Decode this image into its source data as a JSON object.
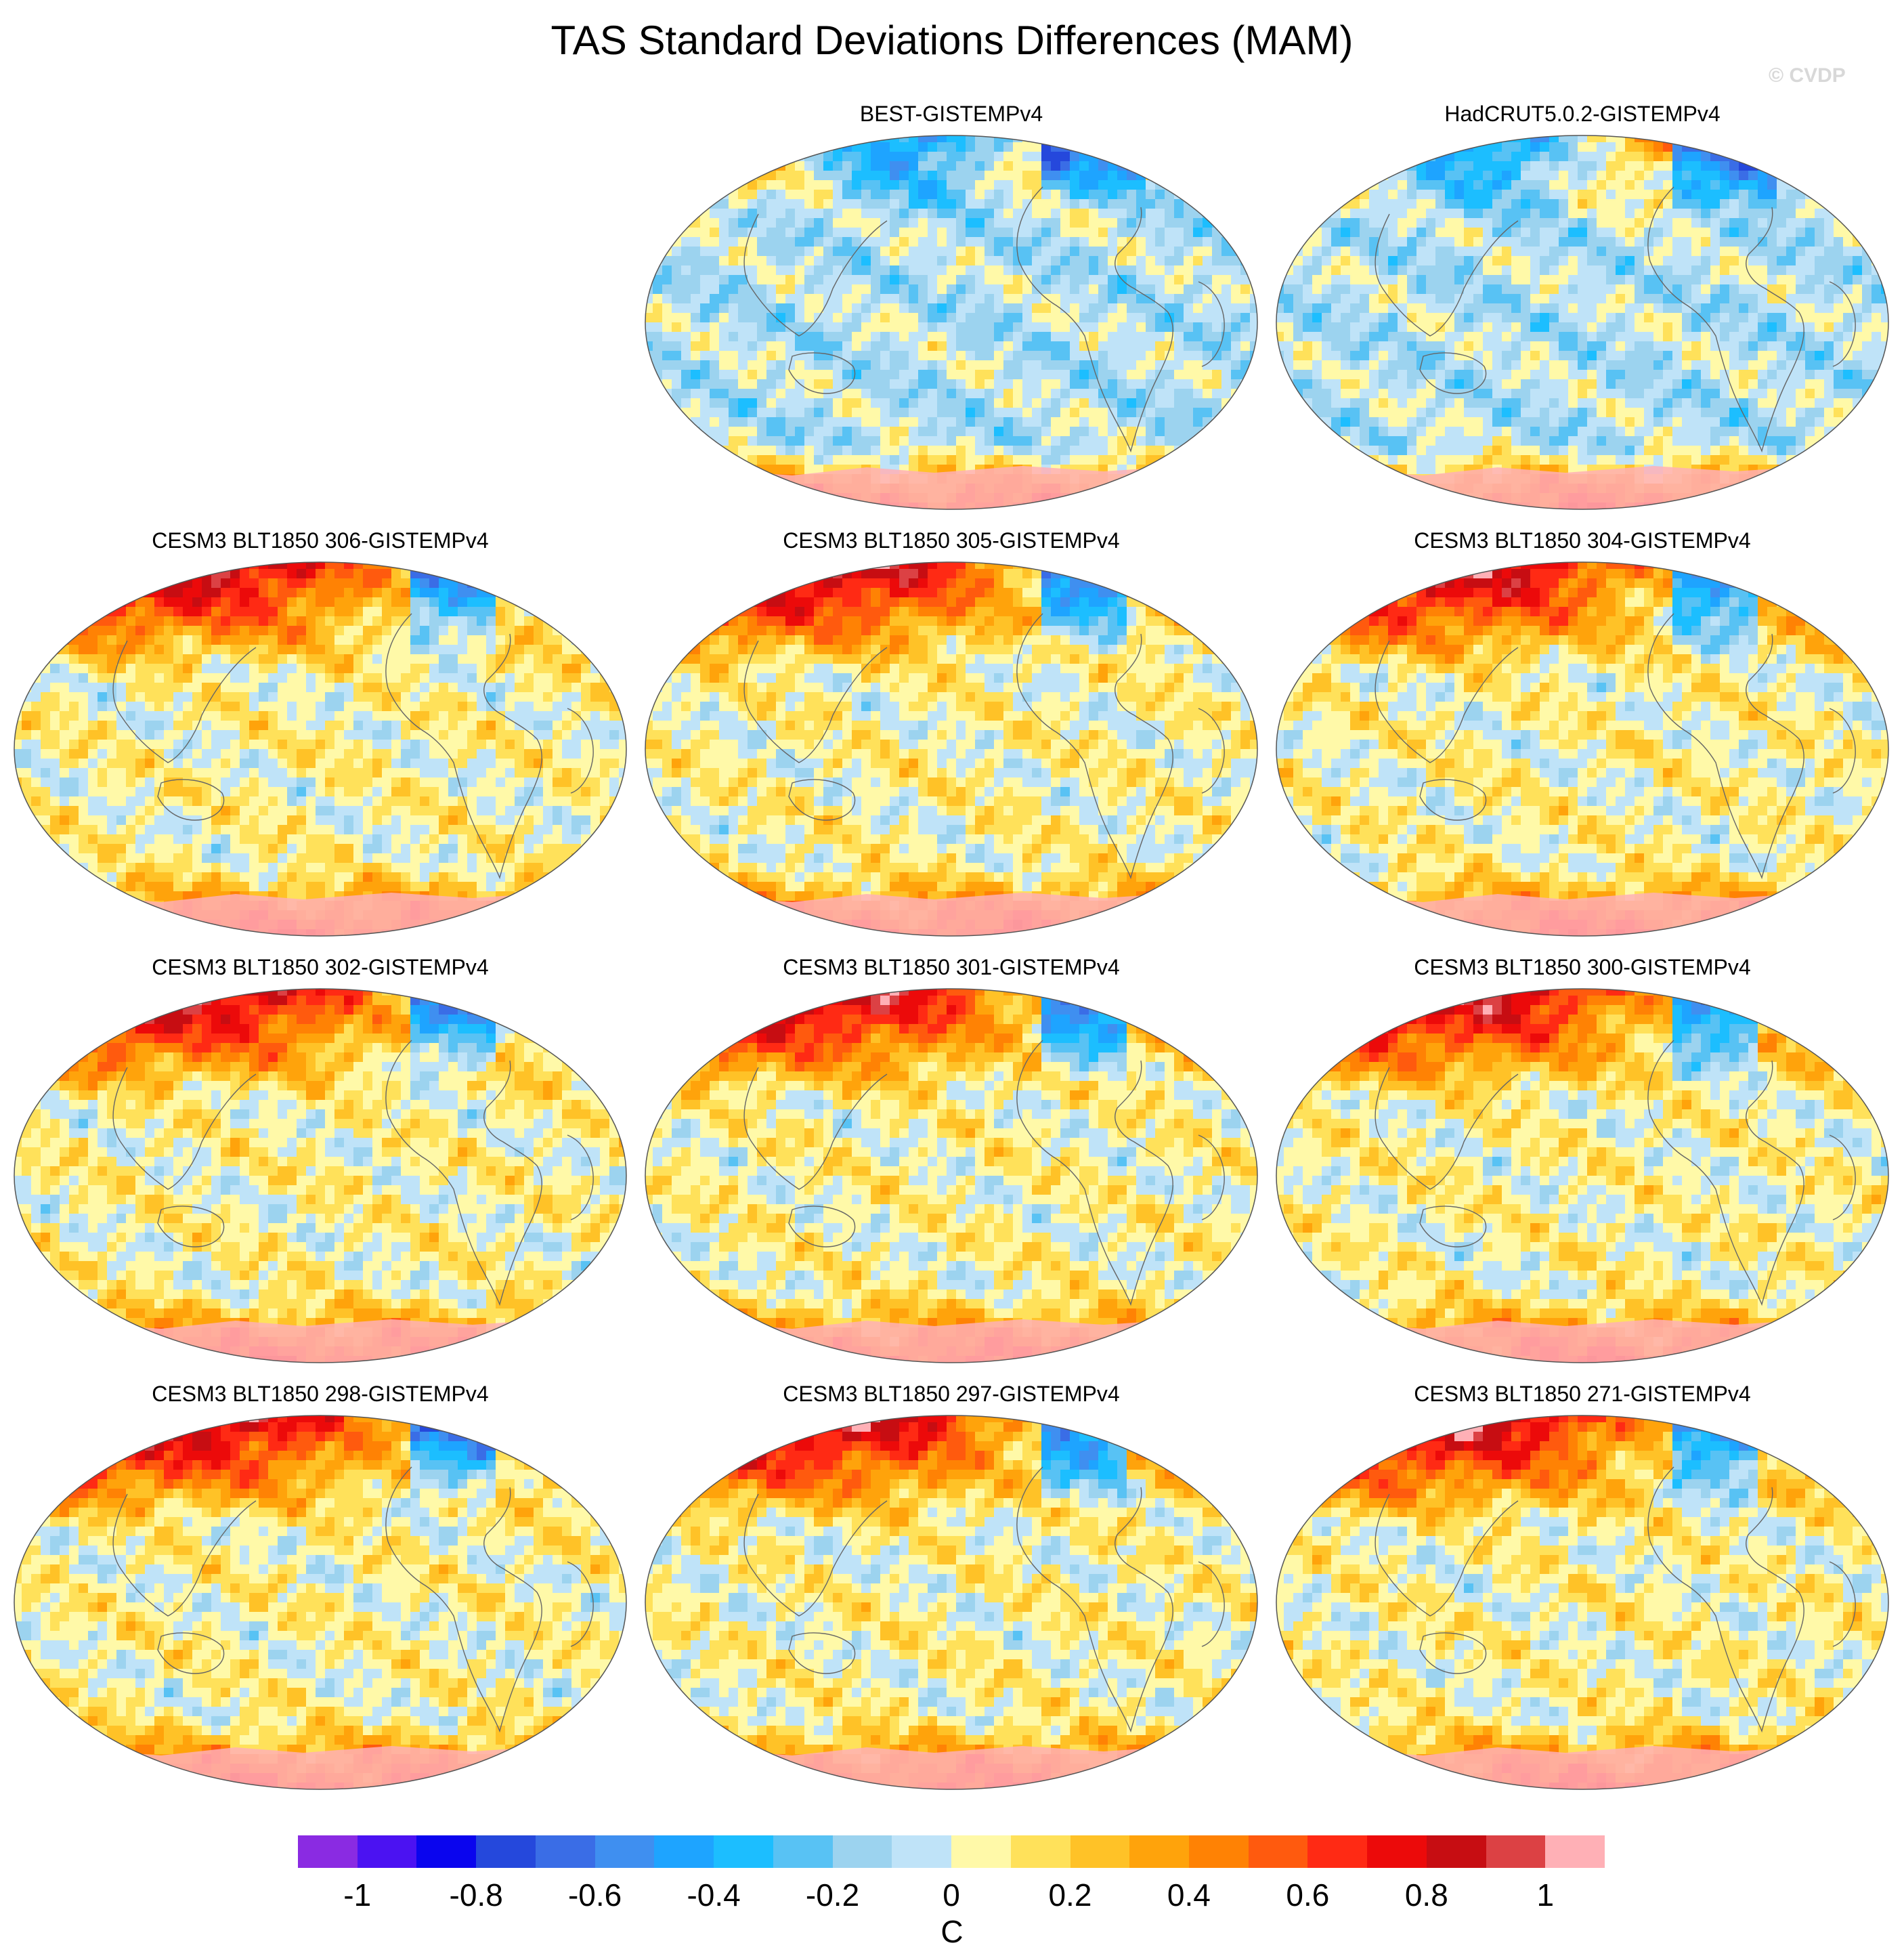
{
  "title": "TAS Standard Deviations Differences (MAM)",
  "copyright": "© CVDP",
  "panels": [
    {
      "name": "BEST-GISTEMPv4",
      "pattern": "obs1"
    },
    {
      "name": "HadCRUT5.0.2-GISTEMPv4",
      "pattern": "obs2"
    },
    {
      "name": "CESM3 BLT1850 306-GISTEMPv4",
      "pattern": "model"
    },
    {
      "name": "CESM3 BLT1850 305-GISTEMPv4",
      "pattern": "model"
    },
    {
      "name": "CESM3 BLT1850 304-GISTEMPv4",
      "pattern": "model"
    },
    {
      "name": "CESM3 BLT1850 302-GISTEMPv4",
      "pattern": "model"
    },
    {
      "name": "CESM3 BLT1850 301-GISTEMPv4",
      "pattern": "model"
    },
    {
      "name": "CESM3 BLT1850 300-GISTEMPv4",
      "pattern": "model"
    },
    {
      "name": "CESM3 BLT1850 298-GISTEMPv4",
      "pattern": "model"
    },
    {
      "name": "CESM3 BLT1850 297-GISTEMPv4",
      "pattern": "model"
    },
    {
      "name": "CESM3 BLT1850 271-GISTEMPv4",
      "pattern": "model"
    }
  ],
  "colorbar": {
    "unit": "C",
    "tick_labels": [
      "-1",
      "-0.8",
      "-0.6",
      "-0.4",
      "-0.2",
      "0",
      "0.2",
      "0.4",
      "0.6",
      "0.8",
      "1"
    ],
    "tick_values": [
      -1,
      -0.8,
      -0.6,
      -0.4,
      -0.2,
      0,
      0.2,
      0.4,
      0.6,
      0.8,
      1
    ],
    "range": [
      -1.1,
      1.1
    ],
    "colors": [
      "#8a2be2",
      "#4b12f2",
      "#0a05ee",
      "#2548dc",
      "#3a6de6",
      "#3f8ff0",
      "#1ea4ff",
      "#1cbeff",
      "#58c2f4",
      "#9cd3ef",
      "#bfe3f8",
      "#fff9a8",
      "#ffe15a",
      "#ffc227",
      "#ffa30b",
      "#ff8204",
      "#ff5a0e",
      "#ff2a14",
      "#ec0a0a",
      "#c70d12",
      "#dc4144",
      "#ffb0b6"
    ]
  }
}
